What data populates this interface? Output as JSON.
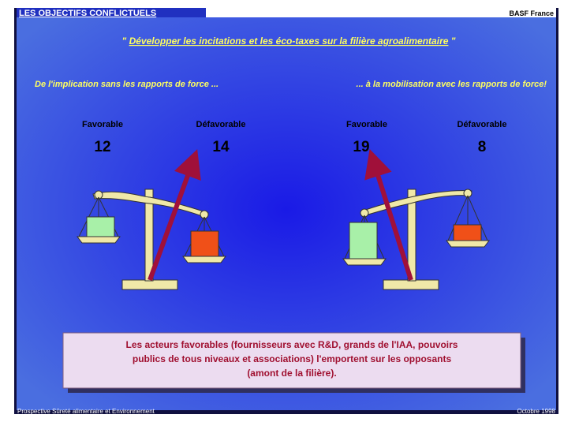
{
  "header": {
    "title": "LES OBJECTIFS CONFLICTUELS",
    "company": "BASF France"
  },
  "quote": {
    "open": "\"",
    "text": "Développer les incitations et les éco-taxes sur la filière agroalimentaire",
    "close": "\""
  },
  "subtitle": {
    "left": "De l'implication sans les rapports de force ...",
    "right": "... à la mobilisation avec les rapports de force!"
  },
  "scales": [
    {
      "favorable_label": "Favorable",
      "favorable": "12",
      "unfavorable_label": "Défavorable",
      "unfavorable": "14"
    },
    {
      "favorable_label": "Favorable",
      "favorable": "19",
      "unfavorable_label": "Défavorable",
      "unfavorable": "8"
    }
  ],
  "callout": [
    "Les acteurs favorables (fournisseurs avec R&D, grands de l'IAA, pouvoirs",
    "publics de tous niveaux et associations)  l'emportent sur les opposants",
    "(amont de la filière)."
  ],
  "footer": {
    "left": "Prospective Sûreté alimentaire et Environnement",
    "right": "Octobre 1998"
  }
}
